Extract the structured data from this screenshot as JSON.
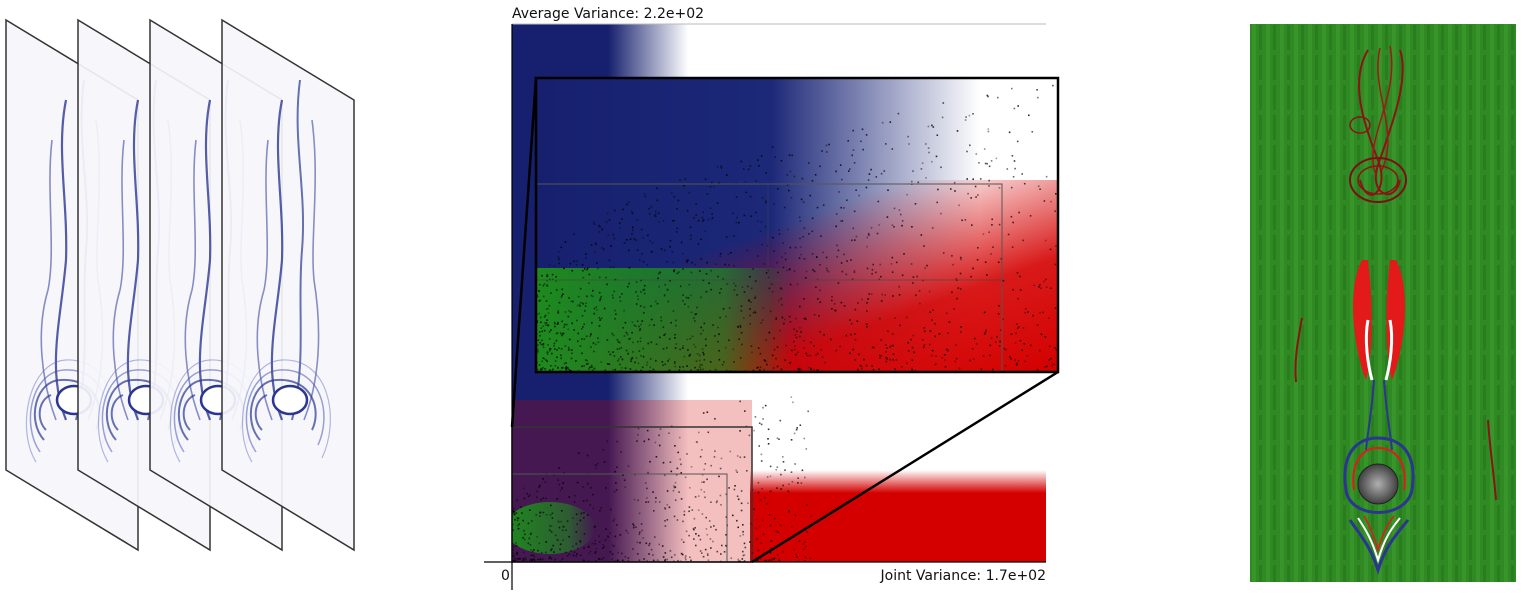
{
  "chart_data": {
    "type": "scatter",
    "title": "",
    "ylabel": "Average Variance: 2.2e+02",
    "xlabel": "Joint Variance: 1.7e+02",
    "origin_label": "0",
    "xlim": [
      0,
      170
    ],
    "ylim": [
      0,
      220
    ],
    "background_colormap": [
      "#16206e",
      "#ffffff",
      "#d40000"
    ],
    "cluster_color": "#1e8a1e",
    "grid": false,
    "inset_zoom": {
      "x_range": [
        0,
        77
      ],
      "y_range": [
        0,
        43
      ]
    }
  },
  "slices": {
    "count": 4,
    "color": "#2a3690"
  },
  "field_view": {
    "background": "#2f8a24",
    "streamline_color": "#8a1414",
    "red_region": "#e21a1a"
  }
}
